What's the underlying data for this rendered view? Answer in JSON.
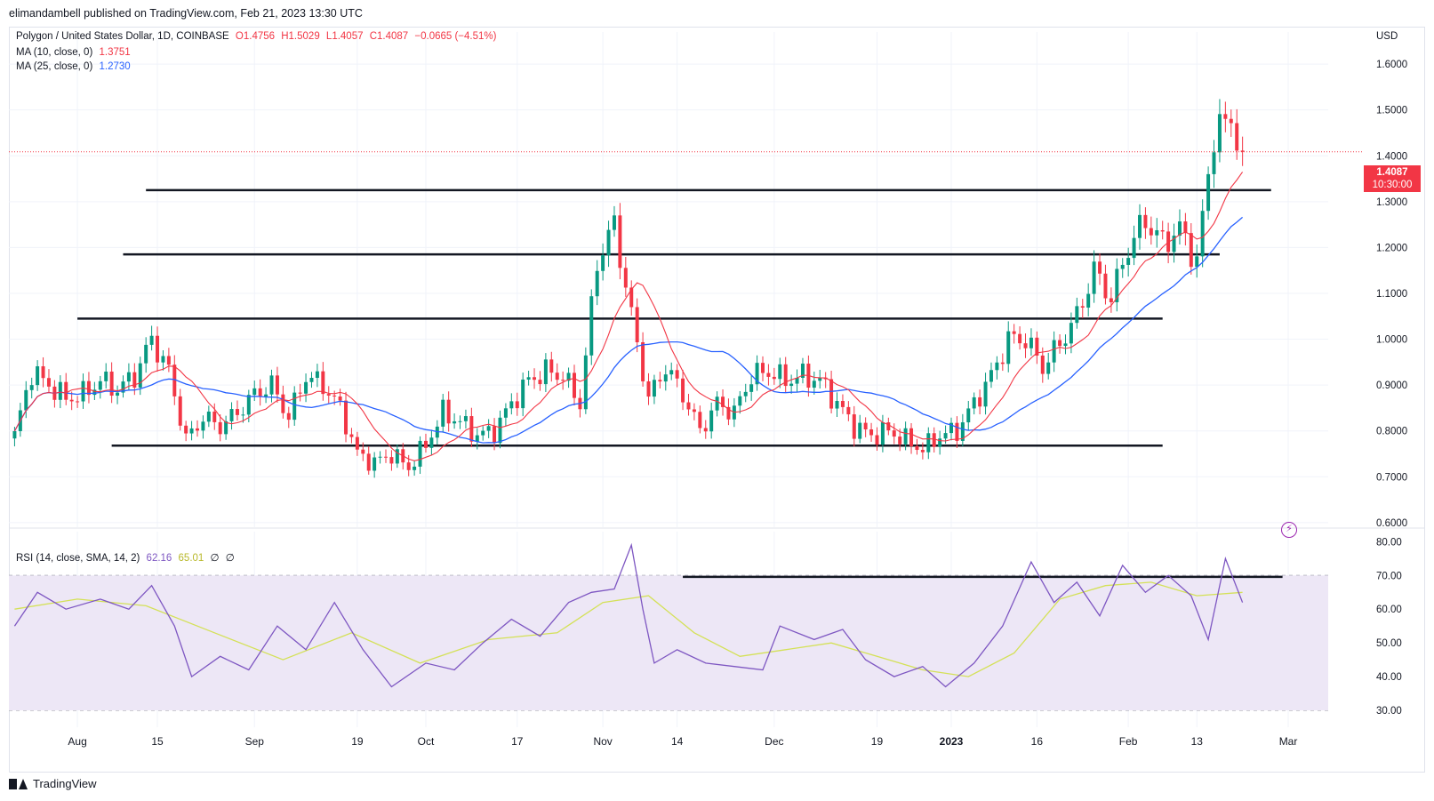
{
  "publisher_line": "elimandambell published on TradingView.com, Feb 21, 2023 13:30 UTC",
  "legend": {
    "symbol": "Polygon / United States Dollar, 1D, COINBASE",
    "ohlc": {
      "O": "O1.4756",
      "H": "H1.5029",
      "L": "L1.4057",
      "C": "C1.4087",
      "change": "−0.0665 (−4.51%)"
    },
    "ma10_label": "MA (10, close, 0)",
    "ma10_value": "1.3751",
    "ma25_label": "MA (25, close, 0)",
    "ma25_value": "1.2730",
    "rsi_label": "RSI (14, close, SMA, 14, 2)",
    "rsi_value": "62.16",
    "rsi_sma_value": "65.01",
    "rsi_extra1": "∅",
    "rsi_extra2": "∅"
  },
  "currency": "USD",
  "last_price": {
    "price": "1.4087",
    "countdown": "10:30:00"
  },
  "brand": "TradingView",
  "colors": {
    "up": "#089981",
    "down": "#f23645",
    "ma10": "#f23645",
    "ma25": "#2962ff",
    "rsi": "#7e57c2",
    "rsi_sma": "#d4e157",
    "rsi_band": "#ede7f6",
    "level_line": "#131722"
  },
  "icons": {
    "flash": "flash-icon",
    "logo": "tradingview-logo-icon"
  },
  "chart_data": [
    {
      "type": "candlestick",
      "title": "Polygon / United States Dollar, 1D, COINBASE",
      "y_axis_ticks": [
        "0.6000",
        "0.7000",
        "0.8000",
        "0.9000",
        "1.0000",
        "1.1000",
        "1.2000",
        "1.3000",
        "1.4000",
        "1.5000",
        "1.6000"
      ],
      "y_axis_tick_values": [
        0.6,
        0.7,
        0.8,
        0.9,
        1.0,
        1.1,
        1.2,
        1.3,
        1.4,
        1.5,
        1.6
      ],
      "ylim": [
        0.59,
        1.67
      ],
      "x_axis_ticks": [
        {
          "label": "Aug",
          "date": "2022-08-01"
        },
        {
          "label": "15",
          "date": "2022-08-15"
        },
        {
          "label": "Sep",
          "date": "2022-09-01"
        },
        {
          "label": "19",
          "date": "2022-09-19"
        },
        {
          "label": "Oct",
          "date": "2022-10-01"
        },
        {
          "label": "17",
          "date": "2022-10-17"
        },
        {
          "label": "Nov",
          "date": "2022-11-01"
        },
        {
          "label": "14",
          "date": "2022-11-14"
        },
        {
          "label": "Dec",
          "date": "2022-12-01"
        },
        {
          "label": "19",
          "date": "2022-12-19"
        },
        {
          "label": "2023",
          "date": "2023-01-01",
          "bold": true
        },
        {
          "label": "16",
          "date": "2023-01-16"
        },
        {
          "label": "Feb",
          "date": "2023-02-01"
        },
        {
          "label": "13",
          "date": "2023-02-13"
        },
        {
          "label": "Mar",
          "date": "2023-03-01"
        }
      ],
      "close_series": {
        "dates": [
          "2022-07-21",
          "2022-07-24",
          "2022-07-27",
          "2022-07-30",
          "2022-08-02",
          "2022-08-05",
          "2022-08-08",
          "2022-08-11",
          "2022-08-14",
          "2022-08-17",
          "2022-08-20",
          "2022-08-23",
          "2022-08-26",
          "2022-08-29",
          "2022-09-01",
          "2022-09-04",
          "2022-09-07",
          "2022-09-10",
          "2022-09-13",
          "2022-09-16",
          "2022-09-19",
          "2022-09-22",
          "2022-09-25",
          "2022-09-28",
          "2022-10-01",
          "2022-10-04",
          "2022-10-07",
          "2022-10-10",
          "2022-10-13",
          "2022-10-16",
          "2022-10-19",
          "2022-10-22",
          "2022-10-25",
          "2022-10-28",
          "2022-10-31",
          "2022-11-03",
          "2022-11-06",
          "2022-11-09",
          "2022-11-12",
          "2022-11-15",
          "2022-11-18",
          "2022-11-21",
          "2022-11-24",
          "2022-11-27",
          "2022-11-30",
          "2022-12-03",
          "2022-12-06",
          "2022-12-09",
          "2022-12-12",
          "2022-12-15",
          "2022-12-18",
          "2022-12-21",
          "2022-12-24",
          "2022-12-27",
          "2022-12-30",
          "2023-01-02",
          "2023-01-05",
          "2023-01-08",
          "2023-01-11",
          "2023-01-14",
          "2023-01-17",
          "2023-01-20",
          "2023-01-23",
          "2023-01-26",
          "2023-01-29",
          "2023-02-01",
          "2023-02-04",
          "2023-02-07",
          "2023-02-10",
          "2023-02-13",
          "2023-02-16",
          "2023-02-19",
          "2023-02-21"
        ],
        "values": [
          0.79,
          0.93,
          0.9,
          0.87,
          0.88,
          0.91,
          0.89,
          0.92,
          1.0,
          0.93,
          0.78,
          0.83,
          0.81,
          0.84,
          0.88,
          0.9,
          0.83,
          0.92,
          0.9,
          0.85,
          0.75,
          0.73,
          0.75,
          0.72,
          0.77,
          0.84,
          0.82,
          0.79,
          0.8,
          0.86,
          0.91,
          0.93,
          0.92,
          0.86,
          1.17,
          1.25,
          1.05,
          0.87,
          0.94,
          0.88,
          0.8,
          0.86,
          0.84,
          0.92,
          0.93,
          0.91,
          0.92,
          0.91,
          0.86,
          0.81,
          0.79,
          0.8,
          0.78,
          0.76,
          0.79,
          0.8,
          0.86,
          0.92,
          1.0,
          1.0,
          0.94,
          0.99,
          1.05,
          1.15,
          1.09,
          1.2,
          1.26,
          1.21,
          1.24,
          1.17,
          1.45,
          1.48,
          1.41
        ]
      },
      "ma10_last": 1.3751,
      "ma25_last": 1.273,
      "last_close": 1.4087,
      "horizontal_levels": [
        {
          "y": 1.325,
          "x_start": "2022-08-13",
          "x_end": "2023-02-26"
        },
        {
          "y": 1.185,
          "x_start": "2022-08-09",
          "x_end": "2023-02-17"
        },
        {
          "y": 1.045,
          "x_start": "2022-08-01",
          "x_end": "2023-02-07"
        },
        {
          "y": 0.768,
          "x_start": "2022-08-07",
          "x_end": "2023-02-07"
        }
      ]
    },
    {
      "type": "line",
      "title": "RSI (14, close, SMA, 14, 2)",
      "y_axis_ticks": [
        "30.00",
        "40.00",
        "50.00",
        "60.00",
        "70.00",
        "80.00"
      ],
      "y_axis_tick_values": [
        30,
        40,
        50,
        60,
        70,
        80
      ],
      "ylim": [
        25,
        83
      ],
      "bands": {
        "upper": 70,
        "middle": 50,
        "lower": 30
      },
      "rsi_series": {
        "dates": [
          "2022-07-21",
          "2022-07-25",
          "2022-07-30",
          "2022-08-05",
          "2022-08-10",
          "2022-08-14",
          "2022-08-18",
          "2022-08-21",
          "2022-08-26",
          "2022-08-31",
          "2022-09-05",
          "2022-09-10",
          "2022-09-15",
          "2022-09-20",
          "2022-09-25",
          "2022-10-01",
          "2022-10-06",
          "2022-10-11",
          "2022-10-16",
          "2022-10-21",
          "2022-10-26",
          "2022-10-30",
          "2022-11-03",
          "2022-11-06",
          "2022-11-08",
          "2022-11-10",
          "2022-11-14",
          "2022-11-19",
          "2022-11-24",
          "2022-11-29",
          "2022-12-02",
          "2022-12-08",
          "2022-12-13",
          "2022-12-17",
          "2022-12-22",
          "2022-12-27",
          "2022-12-31",
          "2023-01-05",
          "2023-01-10",
          "2023-01-15",
          "2023-01-19",
          "2023-01-23",
          "2023-01-27",
          "2023-01-31",
          "2023-02-04",
          "2023-02-08",
          "2023-02-12",
          "2023-02-15",
          "2023-02-18",
          "2023-02-21"
        ],
        "values": [
          55,
          65,
          60,
          63,
          60,
          67,
          55,
          40,
          46,
          42,
          55,
          48,
          62,
          48,
          37,
          44,
          42,
          50,
          57,
          52,
          62,
          65,
          66,
          79,
          60,
          44,
          48,
          44,
          43,
          42,
          55,
          51,
          54,
          45,
          40,
          43,
          37,
          44,
          55,
          74,
          62,
          68,
          58,
          73,
          65,
          70,
          64,
          51,
          75,
          62
        ]
      },
      "rsi_sma_series": {
        "dates": [
          "2022-07-21",
          "2022-08-01",
          "2022-08-13",
          "2022-08-25",
          "2022-09-06",
          "2022-09-18",
          "2022-09-30",
          "2022-10-12",
          "2022-10-24",
          "2022-11-01",
          "2022-11-09",
          "2022-11-17",
          "2022-11-25",
          "2022-12-03",
          "2022-12-11",
          "2022-12-19",
          "2022-12-27",
          "2023-01-04",
          "2023-01-12",
          "2023-01-20",
          "2023-01-28",
          "2023-02-05",
          "2023-02-13",
          "2023-02-21"
        ],
        "values": [
          60,
          63,
          61,
          53,
          45,
          53,
          44,
          51,
          53,
          62,
          64,
          53,
          46,
          48,
          50,
          46,
          42,
          40,
          47,
          63,
          67,
          68,
          64,
          65
        ]
      },
      "rsi_last": 62.16,
      "rsi_sma_last": 65.01,
      "horizontal_level": {
        "y": 69.6,
        "x_start": "2022-11-15",
        "x_end": "2023-02-28"
      }
    }
  ]
}
